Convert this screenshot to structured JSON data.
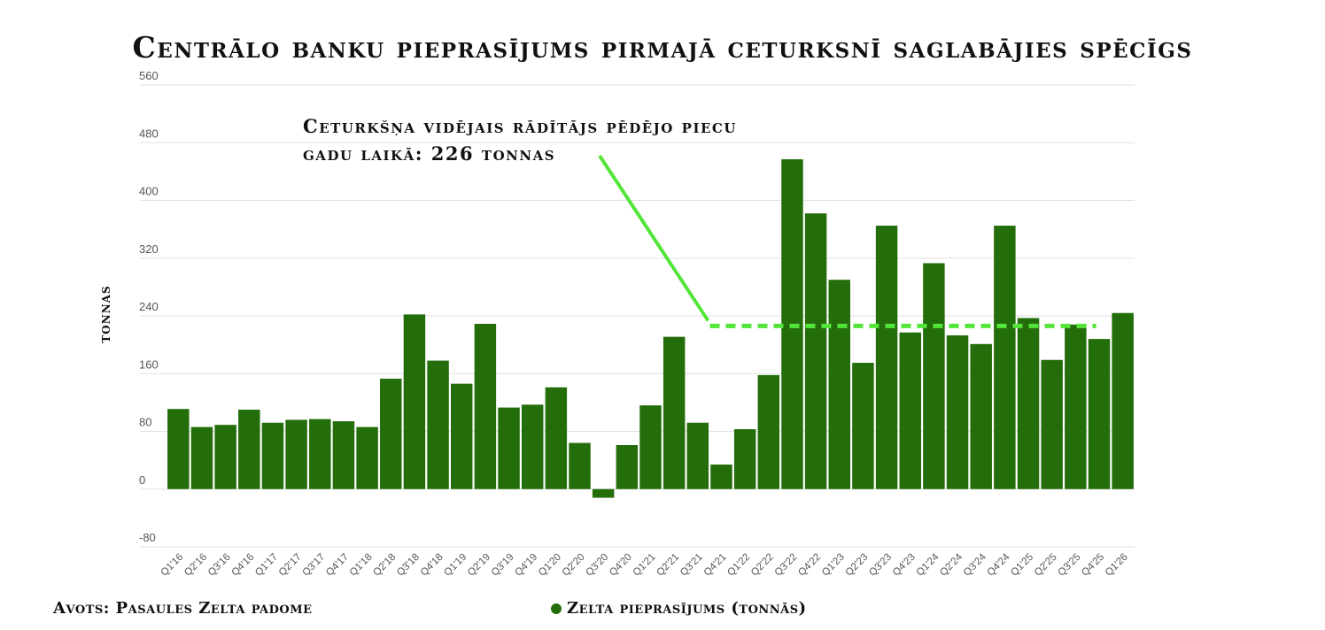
{
  "title": "Centrālo banku pieprasījums pirmajā ceturksnī saglabājies spēcīgs",
  "source": "Avots: Pasaules Zelta padome",
  "legend": {
    "label": "Zelta pieprasījums (tonnās)",
    "color": "#236d0a"
  },
  "colors": {
    "bar": "#236d0a",
    "average_line": "#54e53a",
    "grid": "#e2e2e2"
  },
  "chart_data": {
    "type": "bar",
    "ylabel": "tonnas",
    "ylim": [
      -80,
      560
    ],
    "yticks": [
      -80,
      0,
      80,
      160,
      240,
      320,
      400,
      480,
      560
    ],
    "grid": true,
    "categories": [
      "Q1'16",
      "Q2'16",
      "Q3'16",
      "Q4'16",
      "Q1'17",
      "Q2'17",
      "Q3'17",
      "Q4'17",
      "Q1'18",
      "Q2'18",
      "Q3'18",
      "Q4'18",
      "Q1'19",
      "Q2'19",
      "Q3'19",
      "Q4'19",
      "Q1'20",
      "Q2'20",
      "Q3'20",
      "Q4'20",
      "Q1'21",
      "Q2'21",
      "Q3'21",
      "Q4'21",
      "Q1'22",
      "Q2'22",
      "Q3'22",
      "Q4'22",
      "Q1'23",
      "Q2'23",
      "Q3'23",
      "Q4'23",
      "Q1'24",
      "Q2'24",
      "Q3'24",
      "Q4'24",
      "Q1'25",
      "Q2'25",
      "Q3'25",
      "Q4'25",
      "Q1'26"
    ],
    "series": [
      {
        "name": "Zelta pieprasījums (tonnās)",
        "values": [
          111,
          86,
          89,
          110,
          92,
          96,
          97,
          94,
          86,
          153,
          242,
          178,
          146,
          229,
          113,
          117,
          141,
          64,
          -12,
          61,
          116,
          211,
          92,
          34,
          83,
          158,
          457,
          382,
          290,
          175,
          365,
          217,
          313,
          213,
          201,
          365,
          237,
          179,
          228,
          208,
          244
        ]
      }
    ],
    "average_line": {
      "value": 226,
      "from": "Q4'21",
      "to": "Q1'26",
      "annotation_lines": [
        "Ceturkšņa vidējais rādītājs pēdējo piecu",
        "gadu laikā: 226 tonnas"
      ]
    }
  }
}
